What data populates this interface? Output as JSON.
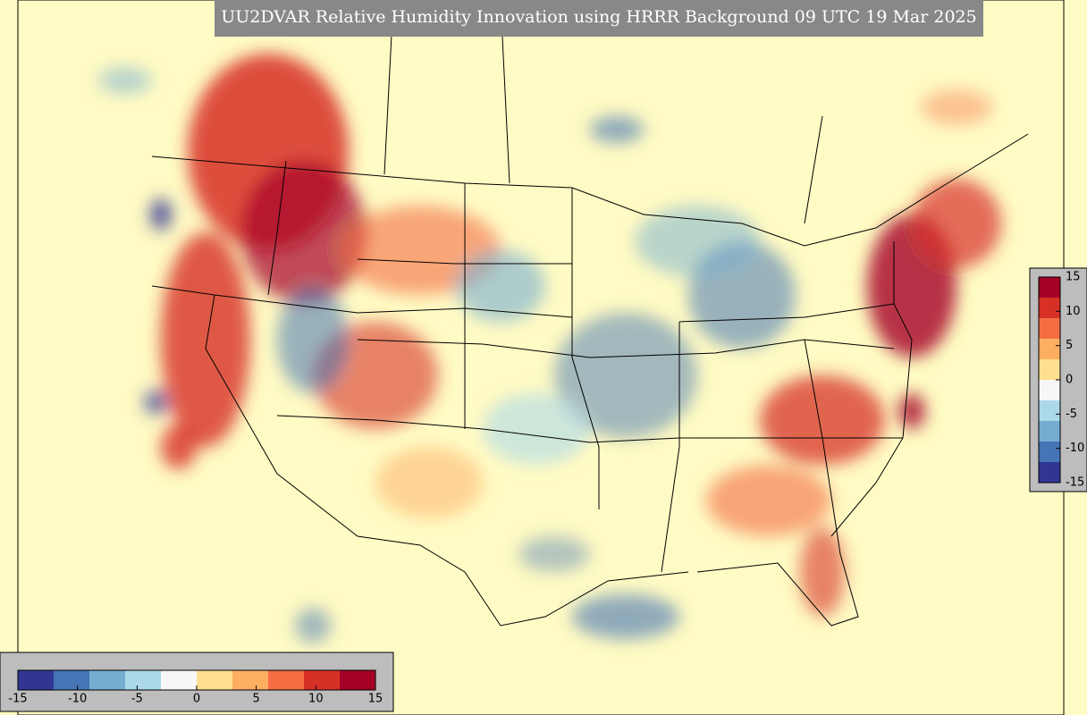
{
  "header": {
    "title": "UU2DVAR Relative Humidity Innovation using HRRR Background 09 UTC 19 Mar 2025"
  },
  "colorbars": [
    {
      "orientation": "vertical",
      "limits": [
        -15,
        15
      ],
      "ticks": [
        15,
        10,
        5,
        0,
        -5,
        -10,
        -15
      ],
      "colors": [
        "#313695",
        "#4575b4",
        "#74add1",
        "#abd9e9",
        "#f7f7f7",
        "#fee090",
        "#fdae61",
        "#f46d43",
        "#d73027",
        "#a50026"
      ]
    },
    {
      "orientation": "horizontal",
      "limits": [
        -15,
        15
      ],
      "ticks": [
        -15,
        -10,
        -5,
        0,
        5,
        10,
        15
      ],
      "colors": [
        "#313695",
        "#4575b4",
        "#74add1",
        "#abd9e9",
        "#f7f7f7",
        "#fee090",
        "#fdae61",
        "#f46d43",
        "#d73027",
        "#a50026"
      ]
    }
  ]
}
